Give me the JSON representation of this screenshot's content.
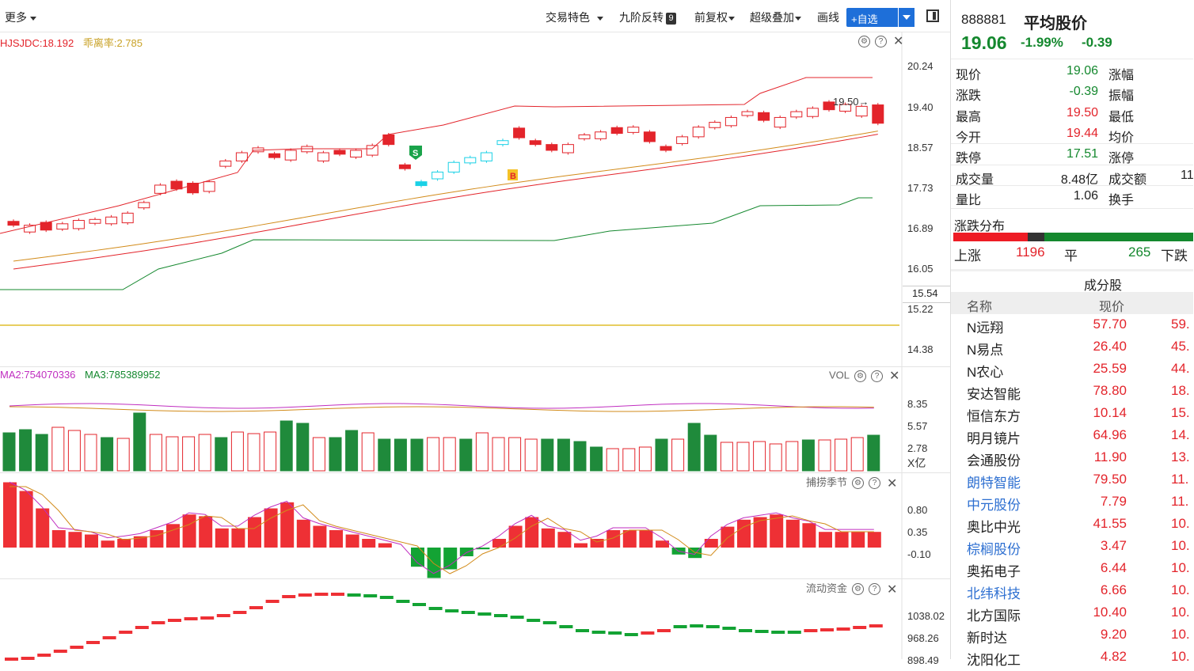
{
  "toolbar": {
    "more": "更多",
    "trade_feature": "交易特色",
    "nine_reverse": "九阶反转",
    "nine_badge": "9",
    "adjust": "前复权",
    "overlay": "超级叠加",
    "draw": "画线",
    "add_watch": "+自选"
  },
  "main_chart": {
    "legend_1": "HJSJDC:18.192",
    "legend_2": "乖离率:2.785",
    "y_ticks": [
      "20.24",
      "19.40",
      "18.57",
      "17.73",
      "16.89",
      "16.05",
      "15.22",
      "14.38"
    ],
    "cursor_price": "15.54",
    "high_marker": "19.50→",
    "sell_marker": "S",
    "buy_marker": "B"
  },
  "volume_chart": {
    "legend_1": "MA2:754070336",
    "legend_2": "MA3:785389952",
    "title": "VOL",
    "y_ticks": [
      "8.35",
      "5.57",
      "2.78"
    ],
    "unit": "X亿"
  },
  "season_chart": {
    "title": "捕捞季节",
    "y_ticks": [
      "0.80",
      "0.35",
      "-0.10"
    ]
  },
  "flow_chart": {
    "title": "流动资金",
    "y_ticks": [
      "1038.02",
      "968.26",
      "898.49"
    ]
  },
  "quote": {
    "code": "888881",
    "name": "平均股价",
    "price": "19.06",
    "pct": "-1.99%",
    "chg": "-0.39",
    "rows": [
      {
        "k1": "现价",
        "v1": "19.06",
        "c1": "green",
        "k2": "涨幅"
      },
      {
        "k1": "涨跌",
        "v1": "-0.39",
        "c1": "green",
        "k2": "振幅"
      },
      {
        "k1": "最高",
        "v1": "19.50",
        "c1": "red",
        "k2": "最低"
      },
      {
        "k1": "今开",
        "v1": "19.44",
        "c1": "red",
        "k2": "均价"
      },
      {
        "k1": "跌停",
        "v1": "17.51",
        "c1": "green",
        "k2": "涨停"
      },
      {
        "k1": "成交量",
        "v1": "8.48亿",
        "c1": "dark",
        "k2": "成交额"
      },
      {
        "k1": "量比",
        "v1": "1.06",
        "c1": "dark",
        "k2": "换手"
      }
    ],
    "turnover_partial": "11"
  },
  "distribution": {
    "title": "涨跌分布",
    "up_label": "上涨",
    "up_count": "1196",
    "flat_label": "平",
    "flat_count": "265",
    "down_label": "下跌",
    "up_frac": 0.31,
    "flat_frac": 0.07
  },
  "constituents": {
    "title": "成分股",
    "col_name": "名称",
    "col_price": "现价",
    "rows": [
      {
        "name": "N远翔",
        "price": "57.70",
        "pct": "59.",
        "link": false
      },
      {
        "name": "N易点",
        "price": "26.40",
        "pct": "45.",
        "link": false
      },
      {
        "name": "N农心",
        "price": "25.59",
        "pct": "44.",
        "link": false
      },
      {
        "name": "安达智能",
        "price": "78.80",
        "pct": "18.",
        "link": false
      },
      {
        "name": "恒信东方",
        "price": "10.14",
        "pct": "15.",
        "link": false
      },
      {
        "name": "明月镜片",
        "price": "64.96",
        "pct": "14.",
        "link": false
      },
      {
        "name": "会通股份",
        "price": "11.90",
        "pct": "13.",
        "link": false
      },
      {
        "name": "朗特智能",
        "price": "79.50",
        "pct": "11.",
        "link": true
      },
      {
        "name": "中元股份",
        "price": "7.79",
        "pct": "11.",
        "link": true
      },
      {
        "name": "奥比中光",
        "price": "41.55",
        "pct": "10.",
        "link": false
      },
      {
        "name": "棕榈股份",
        "price": "3.47",
        "pct": "10.",
        "link": true
      },
      {
        "name": "奥拓电子",
        "price": "6.44",
        "pct": "10.",
        "link": false
      },
      {
        "name": "北纬科技",
        "price": "6.66",
        "pct": "10.",
        "link": true
      },
      {
        "name": "北方国际",
        "price": "10.40",
        "pct": "10.",
        "link": false
      },
      {
        "name": "新时达",
        "price": "9.20",
        "pct": "10.",
        "link": false
      },
      {
        "name": "沈阳化工",
        "price": "4.82",
        "pct": "10.",
        "link": false
      }
    ]
  }
}
